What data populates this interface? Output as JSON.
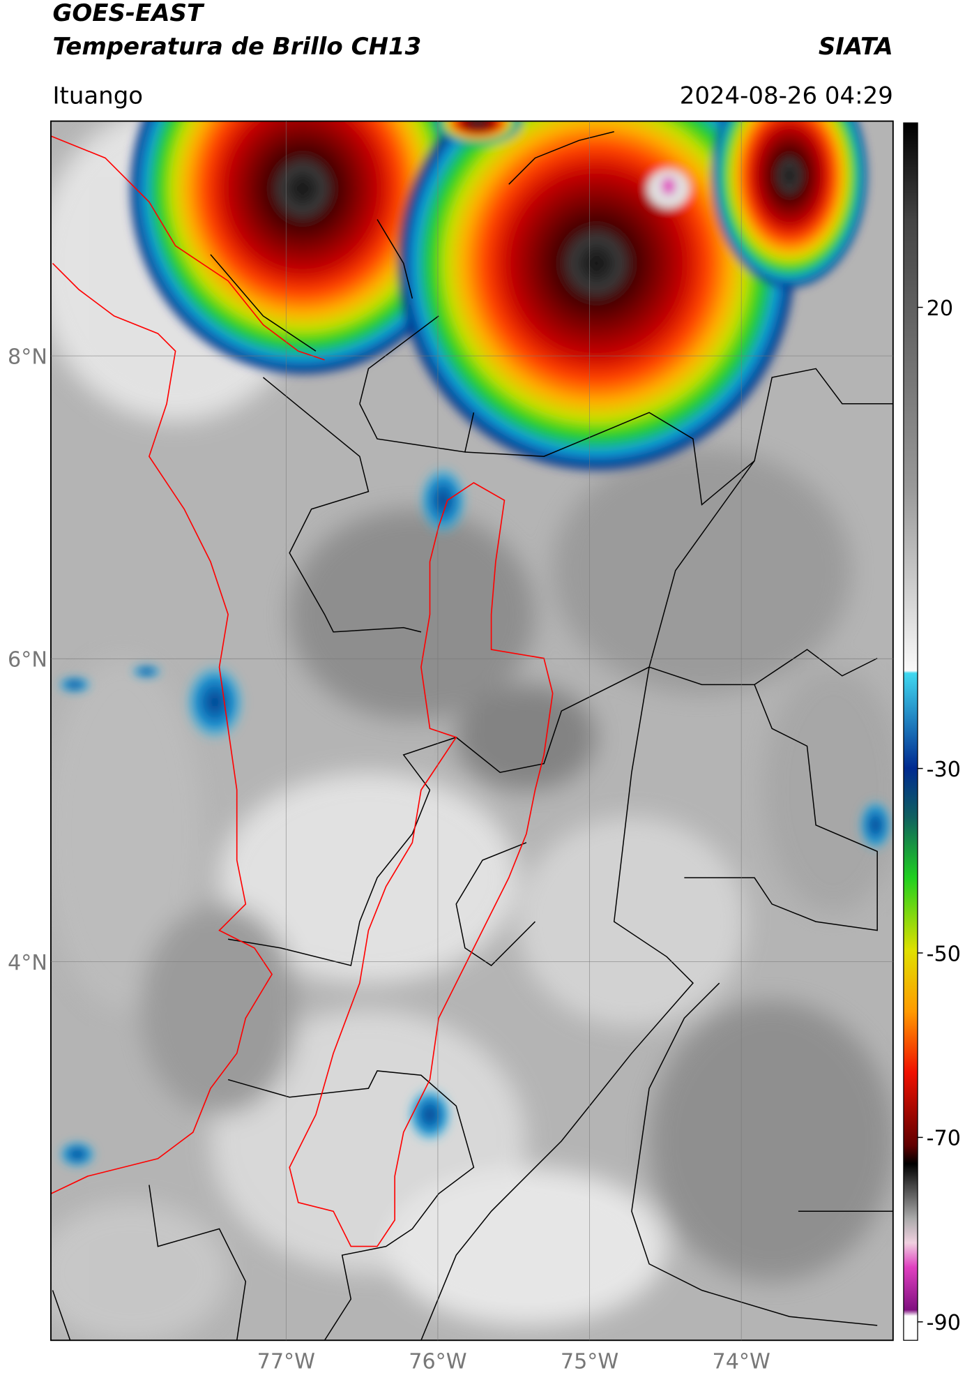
{
  "header": {
    "title": "GOES-EAST",
    "subtitle": "Temperatura de Brillo CH13",
    "agency": "SIATA",
    "location": "Ituango",
    "datetime": "2024-08-26 04:29"
  },
  "map": {
    "xlim": [
      -78.55,
      -73.0
    ],
    "ylim": [
      1.5,
      9.55
    ],
    "lat_ticks": [
      {
        "value": 8,
        "label": "8°N"
      },
      {
        "value": 6,
        "label": "6°N"
      },
      {
        "value": 4,
        "label": "4°N"
      }
    ],
    "lon_ticks": [
      {
        "value": -77,
        "label": "77°W"
      },
      {
        "value": -76,
        "label": "76°W"
      },
      {
        "value": -75,
        "label": "75°W"
      },
      {
        "value": -74,
        "label": "74°W"
      }
    ],
    "grid": true
  },
  "colorbar": {
    "range": [
      -92,
      40
    ],
    "ticks": [
      20,
      -30,
      -50,
      -70,
      -90
    ]
  }
}
